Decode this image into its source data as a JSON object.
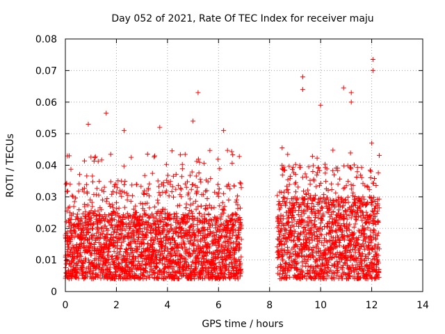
{
  "chart_data": {
    "type": "scatter",
    "title": "Day 052 of 2021, Rate Of TEC Index for receiver maju",
    "xlabel": "GPS time / hours",
    "ylabel": "ROTI / TECUs",
    "xlim": [
      0,
      14
    ],
    "ylim": [
      0,
      0.08
    ],
    "grid": true,
    "marker": "+",
    "color": "#ff0000",
    "x_ticks": [
      "0",
      "2",
      "4",
      "6",
      "8",
      "10",
      "12",
      "14"
    ],
    "y_ticks": [
      "0",
      "0.01",
      "0.02",
      "0.03",
      "0.04",
      "0.05",
      "0.06",
      "0.07",
      "0.08"
    ],
    "series": [
      {
        "name": "ROTI",
        "segments": [
          {
            "x_start": 0.0,
            "x_end": 6.9,
            "step": 0.003
          },
          {
            "x_start": 8.3,
            "x_end": 12.3,
            "step": 0.003
          }
        ],
        "notable_points": [
          {
            "x": 0.15,
            "y": 0.043
          },
          {
            "x": 0.9,
            "y": 0.053
          },
          {
            "x": 1.6,
            "y": 0.0565
          },
          {
            "x": 2.3,
            "y": 0.051
          },
          {
            "x": 3.7,
            "y": 0.052
          },
          {
            "x": 5.0,
            "y": 0.054
          },
          {
            "x": 5.2,
            "y": 0.063
          },
          {
            "x": 6.2,
            "y": 0.051
          },
          {
            "x": 9.3,
            "y": 0.068
          },
          {
            "x": 9.3,
            "y": 0.064
          },
          {
            "x": 10.0,
            "y": 0.059
          },
          {
            "x": 10.9,
            "y": 0.0645
          },
          {
            "x": 11.2,
            "y": 0.063
          },
          {
            "x": 11.2,
            "y": 0.06
          },
          {
            "x": 12.05,
            "y": 0.0735
          },
          {
            "x": 12.05,
            "y": 0.07
          },
          {
            "x": 12.0,
            "y": 0.047
          }
        ]
      }
    ]
  }
}
